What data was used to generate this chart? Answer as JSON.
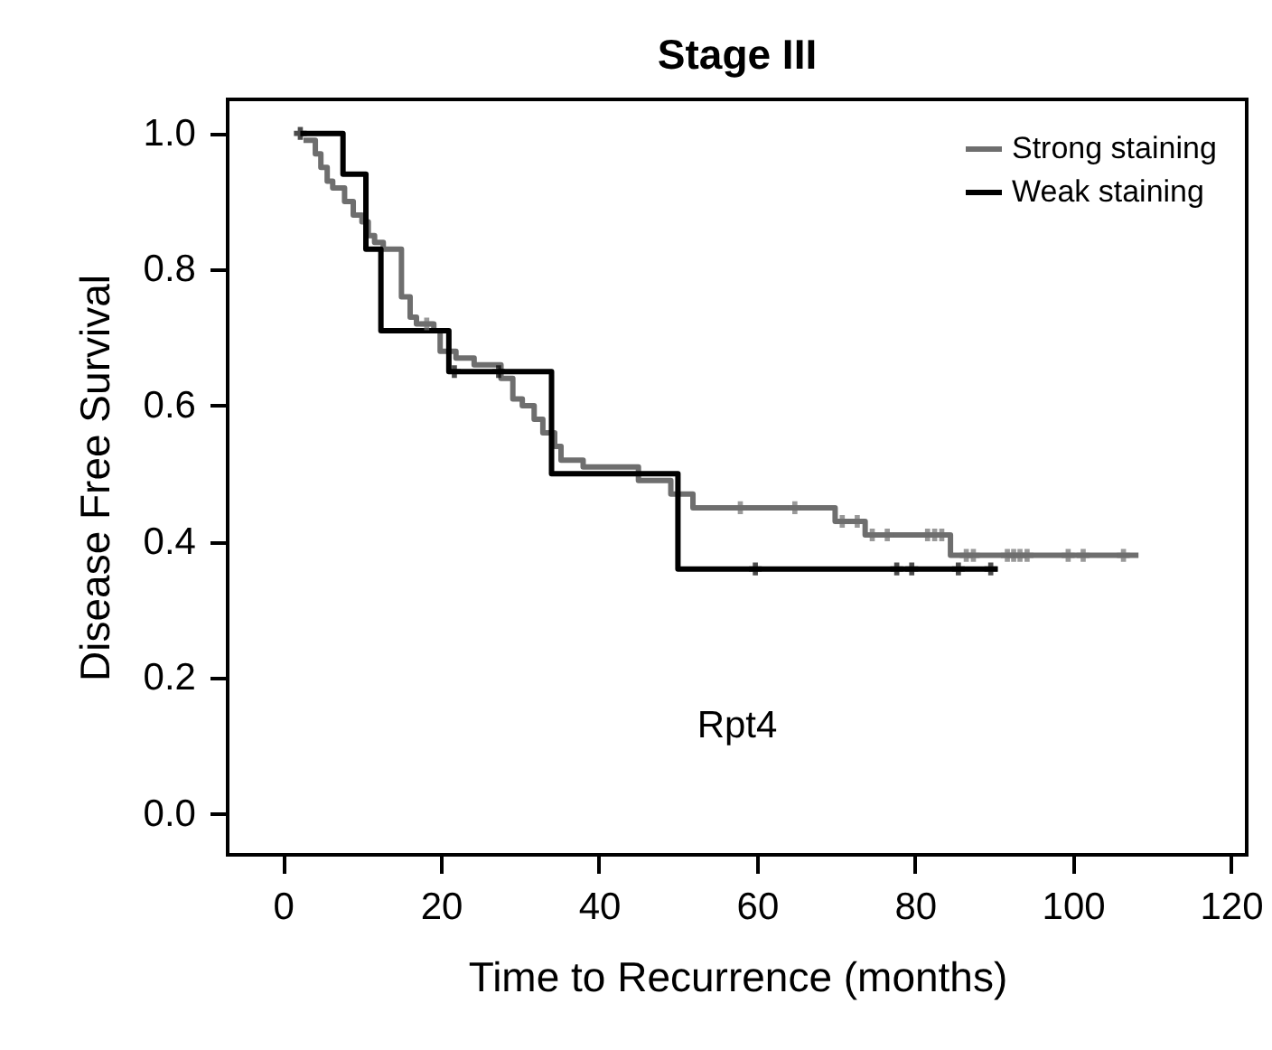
{
  "chart_data": {
    "type": "step",
    "title": "Stage III",
    "xlabel": "Time to Recurrence (months)",
    "ylabel": "Disease Free Survival",
    "xlim": [
      -7,
      122
    ],
    "xticks": [
      0,
      20,
      40,
      60,
      80,
      100,
      120
    ],
    "ylim": [
      -0.06,
      1.05
    ],
    "yticks": [
      {
        "value": 0,
        "label": "0.0"
      },
      {
        "value": 0.2,
        "label": "0.2"
      },
      {
        "value": 0.4,
        "label": "0.4"
      },
      {
        "value": 0.6,
        "label": "0.6"
      },
      {
        "value": 0.8,
        "label": "0.8"
      },
      {
        "value": 1,
        "label": "1.0"
      }
    ],
    "grid": false,
    "legend": "top right",
    "annotations": [
      "Rpt4"
    ],
    "series": [
      {
        "name": "Strong staining",
        "type": "step",
        "color": "#6e6e6e",
        "x": [
          2.6,
          4.1,
          4.8,
          5.6,
          6.3,
          7.8,
          8.9,
          10.0,
          10.8,
          11.6,
          12.7,
          15.0,
          16.1,
          16.9,
          19.1,
          19.9,
          20.7,
          21.9,
          24.2,
          27.6,
          29.1,
          30.3,
          31.8,
          32.9,
          34.4,
          35.2,
          38,
          45,
          49.1,
          51.9,
          69.9,
          73.7,
          84.5,
          108.3
        ],
        "values": [
          0.99,
          0.97,
          0.95,
          0.93,
          0.92,
          0.9,
          0.88,
          0.87,
          0.85,
          0.84,
          0.83,
          0.76,
          0.73,
          0.72,
          0.71,
          0.68,
          0.68,
          0.67,
          0.66,
          0.64,
          0.61,
          0.6,
          0.58,
          0.56,
          0.54,
          0.52,
          0.51,
          0.49,
          0.47,
          0.45,
          0.43,
          0.41,
          0.38,
          0.38
        ]
      },
      {
        "name": "Weak staining",
        "type": "step",
        "color": "#000000",
        "x": [
          2.2,
          7.6,
          10.5,
          12.4,
          21,
          34,
          50,
          90.5
        ],
        "values": [
          1,
          0.94,
          0.83,
          0.71,
          0.65,
          0.5,
          0.36,
          0.36
        ]
      },
      {
        "type": "scatter",
        "marker": "cross",
        "color": "#6e6e6e",
        "x": [
          18.2,
          57.9,
          64.8,
          70.8,
          72.7,
          74.6,
          76.5,
          81.6,
          82.5,
          83.4,
          86.5,
          87.4,
          91.7,
          92.5,
          93.3,
          94.2,
          99.4,
          101.3,
          106.4
        ],
        "values": [
          0.72,
          0.45,
          0.45,
          0.43,
          0.43,
          0.41,
          0.41,
          0.41,
          0.41,
          0.41,
          0.38,
          0.38,
          0.38,
          0.38,
          0.38,
          0.38,
          0.38,
          0.38,
          0.38
        ]
      },
      {
        "type": "scatter",
        "marker": "cross",
        "color": "#000000",
        "x": [
          2.2,
          21.7,
          27.3,
          59.8,
          77.7,
          79.6,
          85.5,
          89.6
        ],
        "values": [
          1,
          0.65,
          0.65,
          0.36,
          0.36,
          0.36,
          0.36,
          0.36
        ]
      }
    ]
  }
}
